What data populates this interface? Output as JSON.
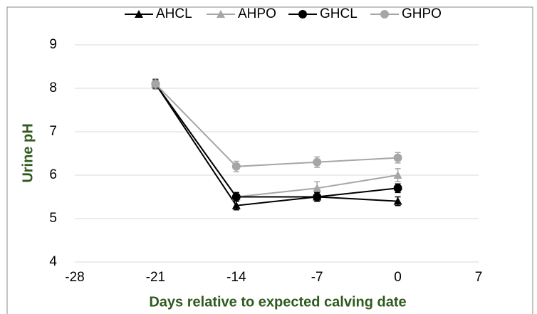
{
  "chart_data": {
    "type": "line",
    "x": [
      -21,
      -14,
      -7,
      0
    ],
    "series": [
      {
        "name": "AHCL",
        "color": "#000000",
        "marker": "triangle",
        "values": [
          8.1,
          5.3,
          5.5,
          5.4
        ],
        "errors": [
          0.1,
          0.1,
          0.1,
          0.1
        ]
      },
      {
        "name": "AHPO",
        "color": "#a6a6a6",
        "marker": "triangle",
        "values": [
          8.1,
          5.5,
          5.7,
          6.0
        ],
        "errors": [
          0.1,
          0.1,
          0.15,
          0.15
        ]
      },
      {
        "name": "GHCL",
        "color": "#000000",
        "marker": "circle",
        "values": [
          8.1,
          5.5,
          5.5,
          5.7
        ],
        "errors": [
          0.1,
          0.1,
          0.1,
          0.1
        ]
      },
      {
        "name": "GHPO",
        "color": "#a6a6a6",
        "marker": "circle",
        "values": [
          8.1,
          6.2,
          6.3,
          6.4
        ],
        "errors": [
          0.12,
          0.12,
          0.12,
          0.12
        ]
      }
    ],
    "xlim": [
      -28,
      7
    ],
    "xticks": [
      -28,
      -21,
      -14,
      -7,
      0,
      7
    ],
    "ylim": [
      4,
      9
    ],
    "yticks": [
      4,
      5,
      6,
      7,
      8,
      9
    ],
    "grid": true,
    "legend": "top",
    "xlabel": "Days relative to expected calving date",
    "ylabel": "Urine pH"
  }
}
